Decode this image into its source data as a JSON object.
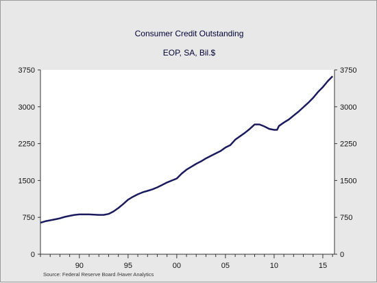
{
  "chart_data": {
    "type": "line",
    "title": "Consumer Credit Outstanding",
    "subtitle": "EOP, SA, Bil.$",
    "source": "Source:  Federal Reserve Board /Haver Analytics",
    "xlim": [
      1986,
      2016.2
    ],
    "ylim": [
      0,
      3750
    ],
    "y_ticks": [
      0,
      750,
      1500,
      2250,
      3000,
      3750
    ],
    "y_tick_labels": [
      "0",
      "750",
      "1500",
      "2250",
      "3000",
      "3750"
    ],
    "x_tick_positions": [
      1990,
      1995,
      2000,
      2005,
      2010,
      2015
    ],
    "x_tick_labels": [
      "90",
      "95",
      "00",
      "05",
      "10",
      "15"
    ],
    "grid": false,
    "line_color": "#1a1a5e",
    "series": [
      {
        "x": [
          1986.0,
          1986.5,
          1987.0,
          1987.5,
          1988.0,
          1988.5,
          1989.0,
          1989.5,
          1990.0,
          1990.5,
          1991.0,
          1991.5,
          1992.0,
          1992.5,
          1993.0,
          1993.5,
          1994.0,
          1994.5,
          1995.0,
          1995.5,
          1996.0,
          1996.5,
          1997.0,
          1997.5,
          1998.0,
          1998.5,
          1999.0,
          1999.5,
          2000.0,
          2000.5,
          2001.0,
          2001.5,
          2002.0,
          2002.5,
          2003.0,
          2003.5,
          2004.0,
          2004.5,
          2005.0,
          2005.5,
          2006.0,
          2006.5,
          2007.0,
          2007.5,
          2008.0,
          2008.5,
          2009.0,
          2009.5,
          2010.0,
          2010.3,
          2010.5,
          2011.0,
          2011.5,
          2012.0,
          2012.5,
          2013.0,
          2013.5,
          2014.0,
          2014.5,
          2015.0,
          2015.5,
          2016.0
        ],
        "values": [
          640,
          670,
          690,
          710,
          730,
          760,
          780,
          800,
          810,
          810,
          810,
          805,
          800,
          800,
          820,
          870,
          940,
          1020,
          1110,
          1170,
          1220,
          1260,
          1290,
          1320,
          1360,
          1410,
          1460,
          1500,
          1540,
          1640,
          1720,
          1780,
          1840,
          1890,
          1950,
          2000,
          2050,
          2100,
          2170,
          2220,
          2330,
          2400,
          2470,
          2550,
          2640,
          2640,
          2600,
          2550,
          2530,
          2530,
          2610,
          2680,
          2740,
          2820,
          2900,
          2990,
          3080,
          3180,
          3300,
          3400,
          3520,
          3620
        ]
      }
    ]
  }
}
